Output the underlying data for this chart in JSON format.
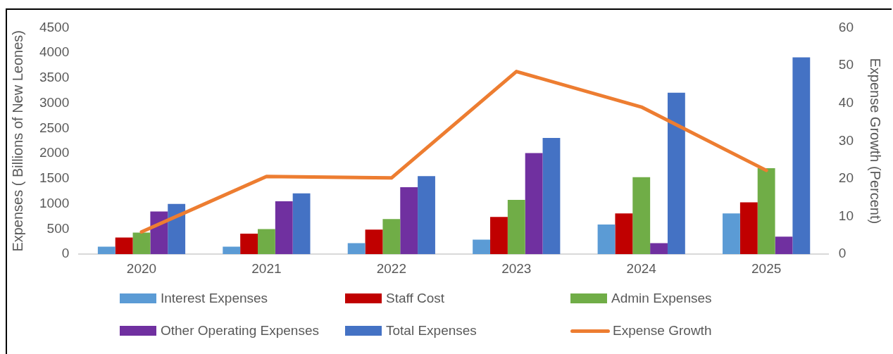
{
  "chart_data": {
    "type": "bar",
    "ylabel": "Expenses ( Billions of New Leones)",
    "y2label": "Expense Growth (Percent)",
    "categories": [
      "2020",
      "2021",
      "2022",
      "2023",
      "2024",
      "2025"
    ],
    "series": [
      {
        "name": "Interest Expenses",
        "color": "#5b9bd5",
        "values": [
          150,
          150,
          220,
          290,
          590,
          810
        ]
      },
      {
        "name": "Staff Cost",
        "color": "#c00000",
        "values": [
          330,
          410,
          490,
          740,
          810,
          1030
        ]
      },
      {
        "name": "Admin Expenses",
        "color": "#70ad47",
        "values": [
          430,
          500,
          700,
          1080,
          1530,
          1710
        ]
      },
      {
        "name": "Other Operating Expenses",
        "color": "#7030a0",
        "values": [
          850,
          1050,
          1330,
          2010,
          220,
          350
        ]
      },
      {
        "name": "Total Expenses",
        "color": "#4472c4",
        "values": [
          1000,
          1210,
          1550,
          2310,
          3210,
          3910
        ]
      },
      {
        "name": "Expense Growth",
        "type": "line",
        "axis": "y2",
        "color": "#ed7d31",
        "values": [
          5.9,
          20.6,
          20.2,
          48.4,
          39,
          22.2
        ]
      }
    ],
    "ylim": [
      0,
      4500
    ],
    "yticks": [
      0,
      500,
      1000,
      1500,
      2000,
      2500,
      3000,
      3500,
      4000,
      4500
    ],
    "y2lim": [
      0,
      60
    ],
    "y2ticks": [
      0,
      10,
      20,
      30,
      40,
      50,
      60
    ],
    "grid": false,
    "legend": "bottom",
    "marker": "none"
  }
}
